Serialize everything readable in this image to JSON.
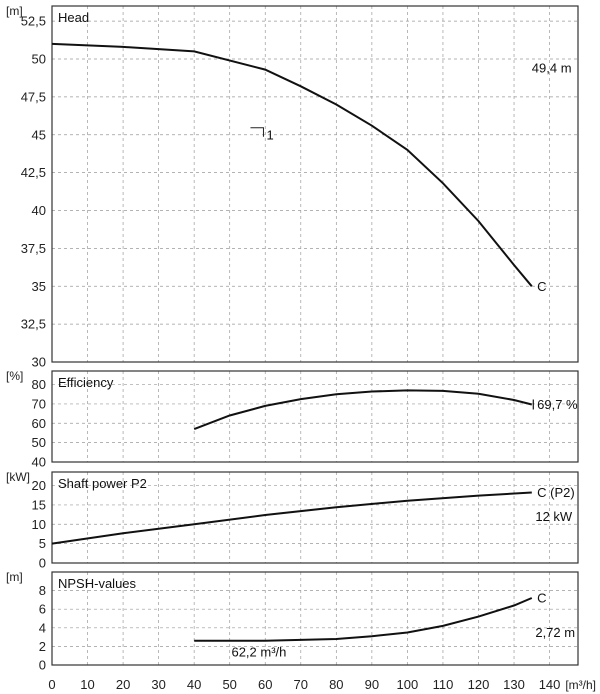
{
  "chart_data": [
    {
      "type": "line",
      "title": "Head",
      "unit": "[m]",
      "ylim": [
        30,
        53.5
      ],
      "yticks": [
        "30",
        "32,5",
        "35",
        "37,5",
        "40",
        "42,5",
        "45",
        "47,5",
        "50",
        "52,5"
      ],
      "yvals": [
        30,
        32.5,
        35,
        37.5,
        40,
        42.5,
        45,
        47.5,
        50,
        52.5
      ],
      "series": [
        {
          "x": [
            0,
            20,
            40,
            60,
            70,
            80,
            90,
            100,
            110,
            120,
            130,
            135
          ],
          "values": [
            51,
            50.8,
            50.5,
            49.3,
            48.2,
            47,
            45.6,
            44,
            41.8,
            39.3,
            36.4,
            35
          ]
        }
      ],
      "annotations": [
        {
          "id": "head-end",
          "text": "C",
          "x": 136.5,
          "y": 35
        },
        {
          "id": "head-value",
          "text": "49,4 m",
          "x": 135,
          "y": 49.4
        },
        {
          "id": "curve-number",
          "text": "1",
          "x": 59.5,
          "y": 45
        }
      ]
    },
    {
      "type": "line",
      "title": "Efficiency",
      "unit": "[%]",
      "ylim": [
        40,
        87
      ],
      "yticks": [
        "40",
        "50",
        "60",
        "70",
        "80"
      ],
      "yvals": [
        40,
        50,
        60,
        70,
        80
      ],
      "series": [
        {
          "x": [
            40,
            50,
            60,
            70,
            80,
            90,
            100,
            110,
            120,
            130,
            135
          ],
          "values": [
            57,
            64,
            69,
            72.5,
            75,
            76.4,
            77,
            76.7,
            75.2,
            72,
            69.7
          ]
        }
      ],
      "annotations": [
        {
          "id": "eff-value",
          "text": "69,7 %",
          "x": 136.5,
          "y": 69.7
        }
      ]
    },
    {
      "type": "line",
      "title": "Shaft power P2",
      "unit": "[kW]",
      "ylim": [
        0,
        23.5
      ],
      "yticks": [
        "0",
        "5",
        "10",
        "15",
        "20"
      ],
      "yvals": [
        0,
        5,
        10,
        15,
        20
      ],
      "series": [
        {
          "x": [
            0,
            20,
            40,
            60,
            80,
            100,
            120,
            135
          ],
          "values": [
            5,
            7.7,
            10,
            12.4,
            14.4,
            16.1,
            17.4,
            18.2
          ]
        }
      ],
      "annotations": [
        {
          "id": "power-end",
          "text": "C (P2)",
          "x": 136.5,
          "y": 18.2
        },
        {
          "id": "power-value",
          "text": "12 kW",
          "x": 136,
          "y": 12
        }
      ]
    },
    {
      "type": "line",
      "title": "NPSH-values",
      "unit": "[m]",
      "ylim": [
        0,
        10
      ],
      "yticks": [
        "0",
        "2",
        "4",
        "6",
        "8"
      ],
      "yvals": [
        0,
        2,
        4,
        6,
        8
      ],
      "series": [
        {
          "x": [
            40,
            60,
            80,
            90,
            100,
            110,
            120,
            130,
            135
          ],
          "values": [
            2.6,
            2.6,
            2.8,
            3.1,
            3.5,
            4.2,
            5.2,
            6.4,
            7.2
          ]
        }
      ],
      "annotations": [
        {
          "id": "npsh-end",
          "text": "C",
          "x": 136.5,
          "y": 7.2
        },
        {
          "id": "npsh-value",
          "text": "2,72 m",
          "x": 136,
          "y": 3.5
        },
        {
          "id": "flow-value",
          "text": "62,2 m³/h",
          "x": 50.5,
          "y": 1.4
        }
      ]
    }
  ],
  "x_axis": {
    "unit": "[m³/h]",
    "xlim": [
      0,
      148
    ],
    "ticks": [
      "0",
      "10",
      "20",
      "30",
      "40",
      "50",
      "60",
      "70",
      "80",
      "90",
      "100",
      "110",
      "120",
      "130",
      "140"
    ],
    "tickvals": [
      0,
      10,
      20,
      30,
      40,
      50,
      60,
      70,
      80,
      90,
      100,
      110,
      120,
      130,
      140
    ]
  }
}
